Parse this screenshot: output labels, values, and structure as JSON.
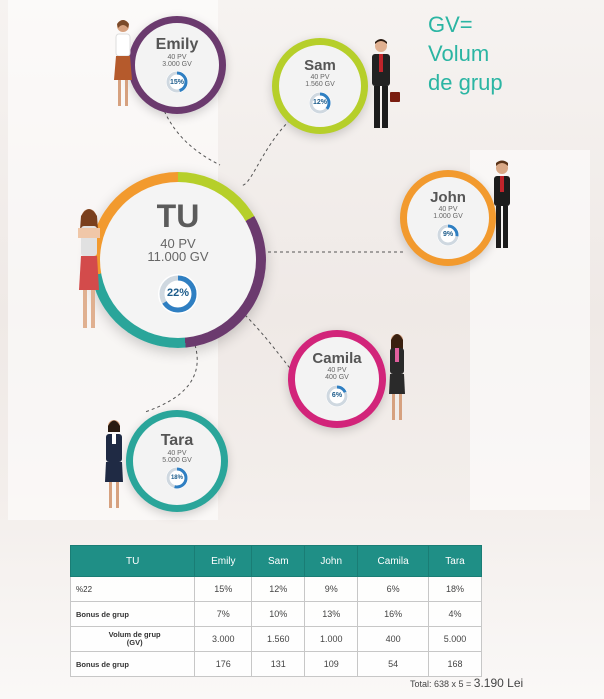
{
  "gv_title": [
    "GV=",
    "Volum",
    "de grup"
  ],
  "center": {
    "name": "TU",
    "pv": "40 PV",
    "gv": "11.000 GV",
    "pct_label": "22%",
    "pct": 0.22
  },
  "nodes": {
    "emily": {
      "name": "Emily",
      "pv": "40  PV",
      "gv": "3.000 GV",
      "pct_label": "15%",
      "pct": 0.15,
      "ring": "#6b3a6e"
    },
    "sam": {
      "name": "Sam",
      "pv": "40  PV",
      "gv": "1.560 GV",
      "pct_label": "12%",
      "pct": 0.12,
      "ring": "#b6cf2a"
    },
    "john": {
      "name": "John",
      "pv": "40 PV",
      "gv": "1.000 GV",
      "pct_label": "9%",
      "pct": 0.09,
      "ring": "#f29a2e"
    },
    "camila": {
      "name": "Camila",
      "pv": "40 PV",
      "gv": "400 GV",
      "pct_label": "6%",
      "pct": 0.06,
      "ring": "#d2247a"
    },
    "tara": {
      "name": "Tara",
      "pv": "40 PV",
      "gv": "5.000 GV",
      "pct_label": "18%",
      "pct": 0.18,
      "ring": "#2aa59a"
    }
  },
  "table": {
    "headers": [
      "TU",
      "Emily",
      "Sam",
      "John",
      "Camila",
      "Tara"
    ],
    "rows": [
      [
        "%22",
        "15%",
        "12%",
        "9%",
        "6%",
        "18%"
      ],
      [
        "Bonus de grup",
        "7%",
        "10%",
        "13%",
        "16%",
        "4%"
      ],
      [
        "Volum de grup\n(GV)",
        "3.000",
        "1.560",
        "1.000",
        "400",
        "5.000"
      ],
      [
        "Bonus de grup",
        "176",
        "131",
        "109",
        "54",
        "168"
      ]
    ]
  },
  "total": {
    "label": "Total: 638 x 5 = ",
    "value": "3.190 Lei"
  }
}
